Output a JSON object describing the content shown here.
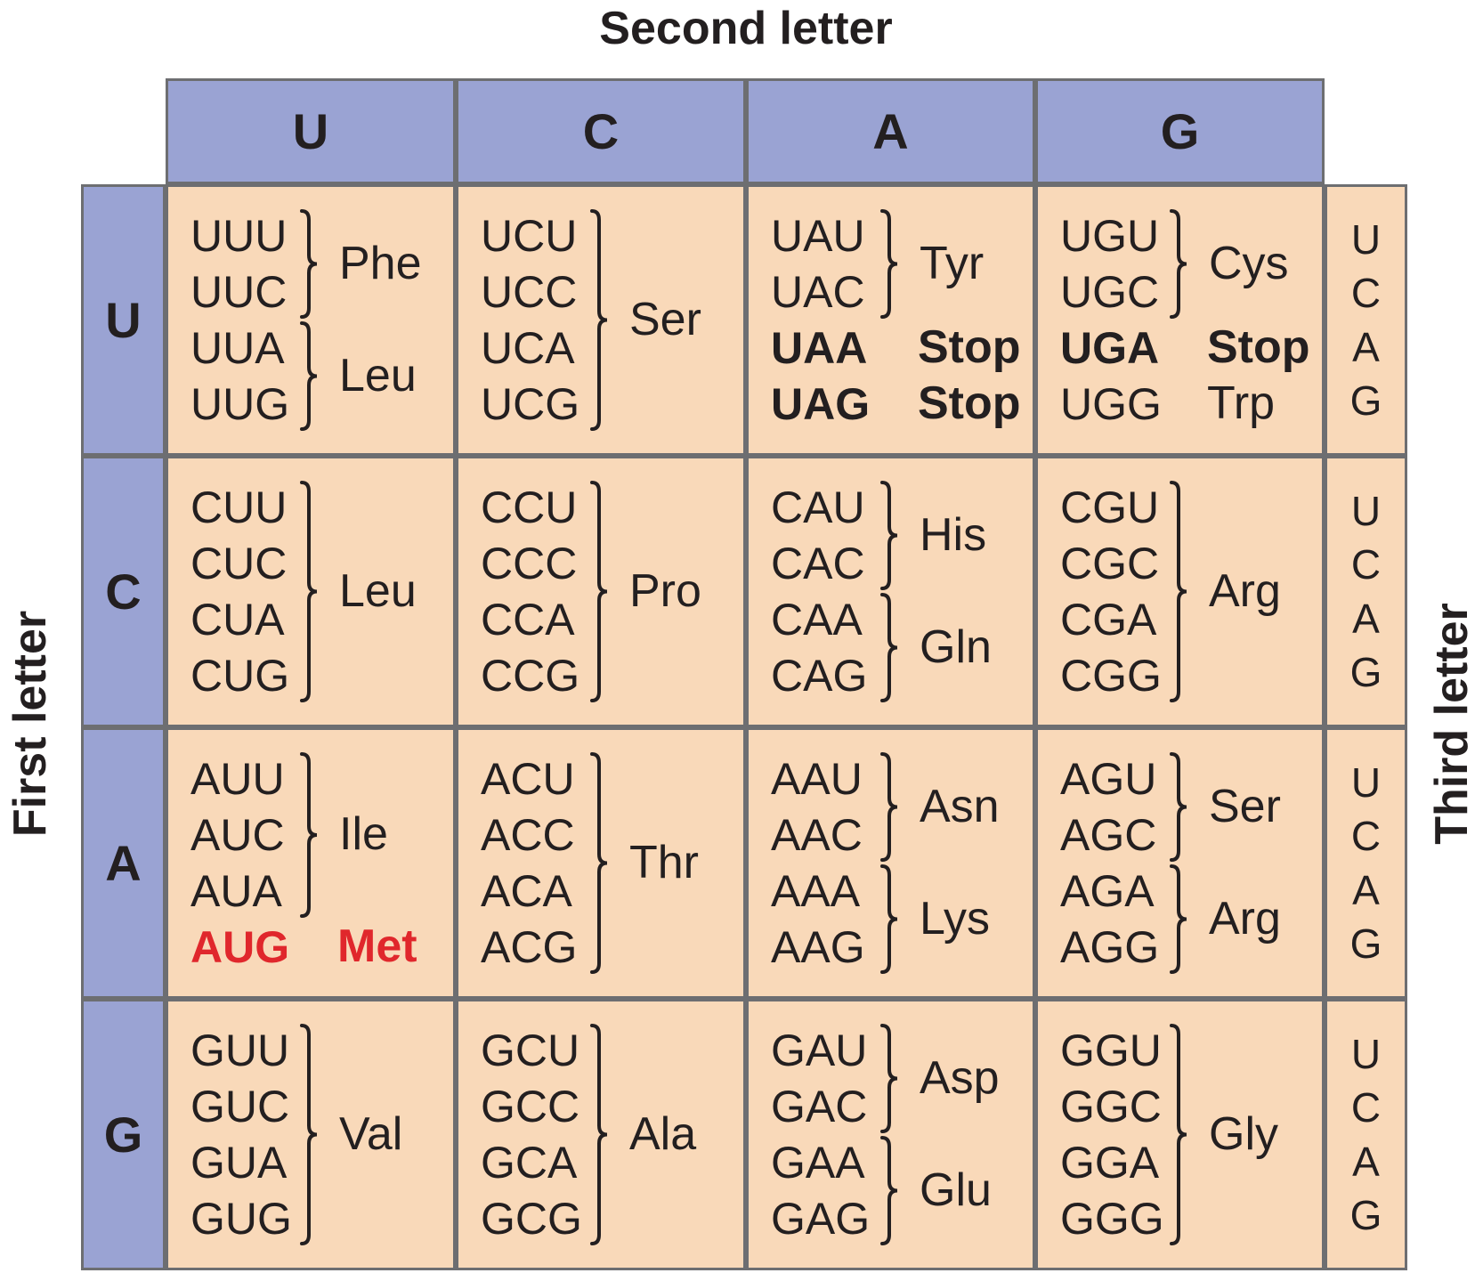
{
  "titles": {
    "second": "Second letter",
    "first": "First letter",
    "third": "Third letter"
  },
  "bases": [
    "U",
    "C",
    "A",
    "G"
  ],
  "colors": {
    "header_fill": "#9aa3d3",
    "cell_fill": "#f9d9b9",
    "grid_line": "#6d6e71",
    "start_codon": "#e0272c"
  },
  "table": [
    [
      {
        "codons": [
          "UUU",
          "UUC",
          "UUA",
          "UUG"
        ],
        "groups": [
          {
            "rows": [
              0,
              1
            ],
            "label": "Phe"
          },
          {
            "rows": [
              2,
              3
            ],
            "label": "Leu"
          }
        ]
      },
      {
        "codons": [
          "UCU",
          "UCC",
          "UCA",
          "UCG"
        ],
        "groups": [
          {
            "rows": [
              0,
              3
            ],
            "label": "Ser"
          }
        ]
      },
      {
        "codons": [
          "UAU",
          "UAC",
          "UAA",
          "UAG"
        ],
        "groups": [
          {
            "rows": [
              0,
              1
            ],
            "label": "Tyr"
          },
          {
            "rows": [
              2,
              2
            ],
            "label": "Stop",
            "kind": "stop"
          },
          {
            "rows": [
              3,
              3
            ],
            "label": "Stop",
            "kind": "stop"
          }
        ]
      },
      {
        "codons": [
          "UGU",
          "UGC",
          "UGA",
          "UGG"
        ],
        "groups": [
          {
            "rows": [
              0,
              1
            ],
            "label": "Cys"
          },
          {
            "rows": [
              2,
              2
            ],
            "label": "Stop",
            "kind": "stop"
          },
          {
            "rows": [
              3,
              3
            ],
            "label": "Trp"
          }
        ]
      }
    ],
    [
      {
        "codons": [
          "CUU",
          "CUC",
          "CUA",
          "CUG"
        ],
        "groups": [
          {
            "rows": [
              0,
              3
            ],
            "label": "Leu"
          }
        ]
      },
      {
        "codons": [
          "CCU",
          "CCC",
          "CCA",
          "CCG"
        ],
        "groups": [
          {
            "rows": [
              0,
              3
            ],
            "label": "Pro"
          }
        ]
      },
      {
        "codons": [
          "CAU",
          "CAC",
          "CAA",
          "CAG"
        ],
        "groups": [
          {
            "rows": [
              0,
              1
            ],
            "label": "His"
          },
          {
            "rows": [
              2,
              3
            ],
            "label": "Gln"
          }
        ]
      },
      {
        "codons": [
          "CGU",
          "CGC",
          "CGA",
          "CGG"
        ],
        "groups": [
          {
            "rows": [
              0,
              3
            ],
            "label": "Arg"
          }
        ]
      }
    ],
    [
      {
        "codons": [
          "AUU",
          "AUC",
          "AUA",
          "AUG"
        ],
        "groups": [
          {
            "rows": [
              0,
              2
            ],
            "label": "Ile"
          },
          {
            "rows": [
              3,
              3
            ],
            "label": "Met",
            "kind": "start"
          }
        ]
      },
      {
        "codons": [
          "ACU",
          "ACC",
          "ACA",
          "ACG"
        ],
        "groups": [
          {
            "rows": [
              0,
              3
            ],
            "label": "Thr"
          }
        ]
      },
      {
        "codons": [
          "AAU",
          "AAC",
          "AAA",
          "AAG"
        ],
        "groups": [
          {
            "rows": [
              0,
              1
            ],
            "label": "Asn"
          },
          {
            "rows": [
              2,
              3
            ],
            "label": "Lys"
          }
        ]
      },
      {
        "codons": [
          "AGU",
          "AGC",
          "AGA",
          "AGG"
        ],
        "groups": [
          {
            "rows": [
              0,
              1
            ],
            "label": "Ser"
          },
          {
            "rows": [
              2,
              3
            ],
            "label": "Arg"
          }
        ]
      }
    ],
    [
      {
        "codons": [
          "GUU",
          "GUC",
          "GUA",
          "GUG"
        ],
        "groups": [
          {
            "rows": [
              0,
              3
            ],
            "label": "Val"
          }
        ]
      },
      {
        "codons": [
          "GCU",
          "GCC",
          "GCA",
          "GCG"
        ],
        "groups": [
          {
            "rows": [
              0,
              3
            ],
            "label": "Ala"
          }
        ]
      },
      {
        "codons": [
          "GAU",
          "GAC",
          "GAA",
          "GAG"
        ],
        "groups": [
          {
            "rows": [
              0,
              1
            ],
            "label": "Asp"
          },
          {
            "rows": [
              2,
              3
            ],
            "label": "Glu"
          }
        ]
      },
      {
        "codons": [
          "GGU",
          "GGC",
          "GGA",
          "GGG"
        ],
        "groups": [
          {
            "rows": [
              0,
              3
            ],
            "label": "Gly"
          }
        ]
      }
    ]
  ]
}
